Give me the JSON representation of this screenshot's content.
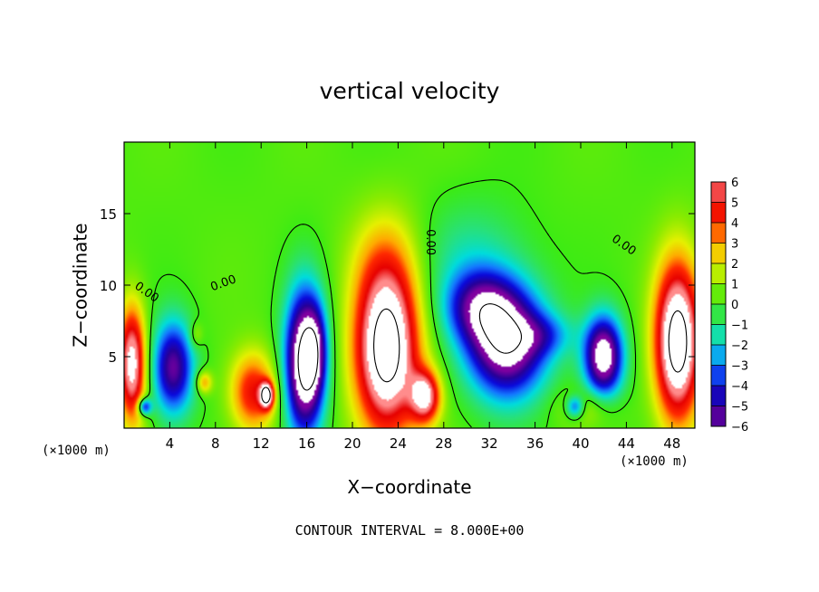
{
  "chart_data": {
    "type": "heatmap",
    "title": "vertical velocity",
    "xlabel": "X−coordinate",
    "ylabel": "Z−coordinate",
    "x_unit": "(×1000 m)",
    "x_ticks": [
      4,
      8,
      12,
      16,
      20,
      24,
      28,
      32,
      36,
      40,
      44,
      48
    ],
    "y_ticks": [
      5,
      10,
      15
    ],
    "xlim": [
      0,
      50
    ],
    "ylim": [
      0,
      20
    ],
    "note": "CONTOUR INTERVAL = 8.000E+00",
    "contour_labels": [
      "0.00",
      "0.00",
      "0.00",
      "0.00"
    ],
    "colorbar": {
      "ticks": [
        "6",
        "5",
        "4",
        "3",
        "2",
        "1",
        "0",
        "−1",
        "−2",
        "−3",
        "−4",
        "−5",
        "−6"
      ],
      "range": [
        -6,
        6
      ]
    },
    "field_features": [
      {
        "type": "updraft",
        "x": 0.7,
        "z": 4.5,
        "rx": 1.2,
        "rz": 4.0,
        "w": 7
      },
      {
        "type": "updraft",
        "x": 7.0,
        "z": 3.2,
        "rx": 0.7,
        "rz": 0.8,
        "w": 3
      },
      {
        "type": "updraft",
        "x": 6.3,
        "z": 6.5,
        "rx": 0.6,
        "rz": 0.9,
        "w": 1.5
      },
      {
        "type": "updraft",
        "x": 11.3,
        "z": 2.5,
        "rx": 2.0,
        "rz": 2.8,
        "w": 4.5
      },
      {
        "type": "updraft",
        "x": 12.5,
        "z": 2.3,
        "rx": 0.6,
        "rz": 0.9,
        "w": 7
      },
      {
        "type": "updraft",
        "x": 23.0,
        "z": 5.5,
        "rx": 2.8,
        "rz": 6.0,
        "w": 9
      },
      {
        "type": "updraft",
        "x": 26.4,
        "z": 2.2,
        "rx": 1.3,
        "rz": 1.8,
        "w": 6
      },
      {
        "type": "updraft",
        "x": 48.5,
        "z": 6.0,
        "rx": 2.0,
        "rz": 5.5,
        "w": 9
      },
      {
        "type": "updraft",
        "x": 40.5,
        "z": 1.5,
        "rx": 2.5,
        "rz": 1.3,
        "w": 1.5
      },
      {
        "type": "updraft",
        "x": 23.0,
        "z": 12.0,
        "rx": 3.5,
        "rz": 4.0,
        "w": 1.2
      },
      {
        "type": "downdraft",
        "x": 4.3,
        "z": 4.2,
        "rx": 1.8,
        "rz": 3.3,
        "w": -6
      },
      {
        "type": "downdraft",
        "x": 1.8,
        "z": 1.5,
        "rx": 0.6,
        "rz": 0.6,
        "w": -5
      },
      {
        "type": "downdraft",
        "x": 15.8,
        "z": 4.5,
        "rx": 1.7,
        "rz": 5.0,
        "w": -9
      },
      {
        "type": "downdraft",
        "x": 16.8,
        "z": 5.5,
        "rx": 1.0,
        "rz": 3.0,
        "w": -3
      },
      {
        "type": "downdraft",
        "x": 33.5,
        "z": 6.0,
        "rx": 3.5,
        "rz": 3.8,
        "w": -8
      },
      {
        "type": "downdraft",
        "x": 31.0,
        "z": 8.5,
        "rx": 3.0,
        "rz": 2.5,
        "w": -4
      },
      {
        "type": "downdraft",
        "x": 42.0,
        "z": 5.0,
        "rx": 1.7,
        "rz": 2.8,
        "w": -8
      },
      {
        "type": "downdraft",
        "x": 39.5,
        "z": 1.5,
        "rx": 0.8,
        "rz": 0.8,
        "w": -4
      },
      {
        "type": "downdraft",
        "x": 37.0,
        "z": 6.5,
        "rx": 2.5,
        "rz": 1.5,
        "w": -2
      },
      {
        "type": "downdraft",
        "x": 30.5,
        "z": 12.0,
        "rx": 5.0,
        "rz": 4.0,
        "w": -1.5
      }
    ]
  }
}
